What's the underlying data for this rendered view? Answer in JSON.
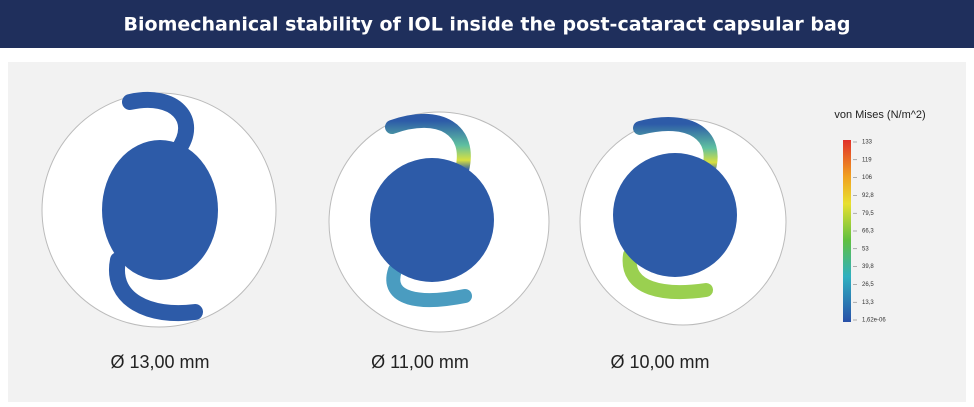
{
  "header": {
    "title": "Biomechanical stability of IOL inside the post-cataract capsular bag"
  },
  "panels": [
    {
      "label": "Ø 13,00 mm"
    },
    {
      "label": "Ø 11,00 mm"
    },
    {
      "label": "Ø 10,00 mm"
    }
  ],
  "colorbar": {
    "title": "von Mises (N/m^2)",
    "labels": [
      "133",
      "119",
      "106",
      "92,8",
      "79,5",
      "66,3",
      "53",
      "39,8",
      "26,5",
      "13,3",
      "1,62e-06"
    ]
  }
}
